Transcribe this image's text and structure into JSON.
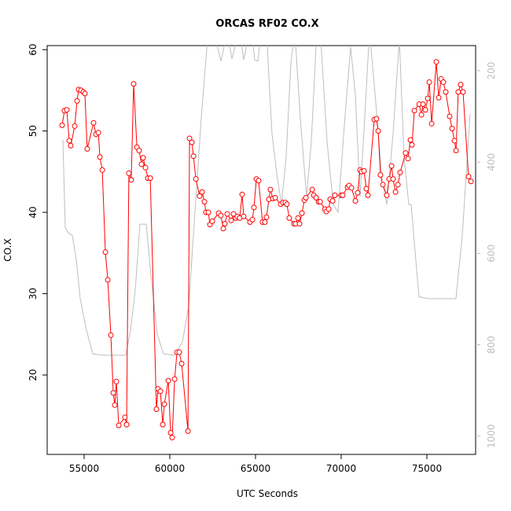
{
  "chart_data": {
    "type": "line",
    "title": "ORCAS RF02 CO.X",
    "x_label": "UTC Seconds",
    "y_label": "CO.X",
    "xlim": [
      52844,
      77844
    ],
    "xticks": [
      55000,
      60000,
      65000,
      70000,
      75000
    ],
    "ylim": [
      10.24,
      60.5
    ],
    "yticks": [
      20,
      30,
      40,
      50,
      60
    ],
    "y2lim": [
      1040,
      145
    ],
    "y2ticks": [
      200,
      400,
      600,
      800,
      1000
    ],
    "series": [
      {
        "color": "#ff0000",
        "marker": "circle",
        "x": [
          53716,
          53850,
          53990,
          54130,
          54220,
          54450,
          54590,
          54680,
          54820,
          54950,
          55045,
          55180,
          55550,
          55690,
          55830,
          55920,
          56060,
          56240,
          56380,
          56560,
          56700,
          56790,
          56880,
          57020,
          57380,
          57480,
          57610,
          57750,
          57890,
          58080,
          58210,
          58350,
          58440,
          58580,
          58720,
          58860,
          59220,
          59310,
          59450,
          59590,
          59680,
          59910,
          60050,
          60140,
          60280,
          60420,
          60550,
          60690,
          61060,
          61150,
          61290,
          61380,
          61520,
          61740,
          61880,
          62020,
          62110,
          62250,
          62340,
          62480,
          62850,
          62980,
          63120,
          63210,
          63350,
          63580,
          63720,
          63850,
          63940,
          64080,
          64220,
          64310,
          64680,
          64820,
          64910,
          65050,
          65180,
          65410,
          65550,
          65640,
          65780,
          65870,
          66010,
          66150,
          66470,
          66600,
          66740,
          66830,
          66970,
          67250,
          67340,
          67480,
          67570,
          67710,
          67850,
          67940,
          68310,
          68400,
          68540,
          68680,
          68770,
          69050,
          69130,
          69270,
          69360,
          69500,
          69630,
          70000,
          70090,
          70370,
          70460,
          70600,
          70830,
          70960,
          71100,
          71190,
          71330,
          71470,
          71560,
          71930,
          72060,
          72160,
          72290,
          72430,
          72660,
          72800,
          72940,
          73030,
          73170,
          73310,
          73440,
          73760,
          73900,
          74040,
          74130,
          74270,
          74550,
          74680,
          74770,
          74910,
          75050,
          75140,
          75280,
          75550,
          75690,
          75830,
          75960,
          76100,
          76330,
          76470,
          76610,
          76700,
          76830,
          76970,
          77110,
          77430,
          77570
        ],
        "values": [
          50.7,
          52.5,
          52.6,
          48.8,
          48.2,
          50.6,
          53.7,
          55.1,
          55.0,
          54.8,
          54.6,
          47.8,
          51.0,
          49.6,
          49.8,
          46.8,
          45.2,
          35.1,
          31.7,
          24.9,
          17.8,
          16.3,
          19.2,
          13.8,
          14.8,
          13.9,
          44.8,
          44.0,
          55.8,
          48.0,
          47.6,
          45.9,
          46.7,
          45.5,
          44.2,
          44.2,
          15.8,
          18.3,
          18.0,
          13.9,
          16.4,
          19.3,
          12.9,
          12.3,
          19.5,
          22.8,
          22.8,
          21.4,
          13.1,
          49.1,
          48.6,
          46.9,
          44.1,
          42.0,
          42.5,
          41.3,
          40.0,
          40.0,
          38.5,
          38.9,
          39.9,
          39.6,
          38.0,
          38.6,
          39.8,
          39.0,
          39.8,
          39.3,
          39.5,
          39.3,
          42.2,
          39.5,
          38.8,
          39.1,
          40.6,
          44.1,
          43.9,
          38.8,
          38.8,
          39.4,
          41.6,
          42.8,
          41.7,
          41.8,
          41.0,
          41.2,
          41.2,
          41.0,
          39.3,
          38.6,
          38.6,
          39.3,
          38.6,
          39.9,
          41.5,
          41.8,
          42.8,
          42.1,
          41.8,
          41.3,
          41.3,
          40.4,
          40.1,
          40.4,
          41.6,
          41.4,
          42.1,
          42.1,
          42.1,
          43.1,
          43.3,
          43.0,
          41.4,
          42.4,
          45.2,
          45.0,
          45.1,
          42.9,
          42.1,
          51.4,
          51.5,
          50.0,
          44.6,
          43.4,
          42.1,
          44.1,
          45.7,
          44.1,
          42.5,
          43.4,
          44.9,
          47.3,
          46.6,
          48.9,
          48.3,
          52.5,
          53.3,
          52.0,
          53.3,
          52.6,
          54.0,
          56.0,
          50.9,
          58.5,
          54.1,
          56.4,
          56.0,
          54.8,
          51.8,
          50.3,
          48.8,
          47.6,
          54.8,
          55.7,
          54.8,
          44.4,
          43.8
        ]
      },
      {
        "color": "#bebebe",
        "axis": "y2",
        "x": [
          53761,
          53899,
          54082,
          54312,
          54541,
          54771,
          55138,
          55505,
          56055,
          57431,
          57706,
          57981,
          58257,
          58624,
          58899,
          59266,
          59633,
          60275,
          60734,
          61101,
          61468,
          61835,
          62201,
          62568,
          62981,
          63165,
          63394,
          63624,
          63853,
          64082,
          64312,
          64541,
          64770,
          64954,
          65137,
          65321,
          65688,
          65963,
          66238,
          66513,
          66788,
          67064,
          67293,
          67614,
          67981,
          68256,
          68532,
          68807,
          69174,
          69541,
          69816,
          70183,
          70550,
          70825,
          71100,
          71375,
          71651,
          72018,
          72385,
          72660,
          73027,
          73394,
          73669,
          73944,
          74082,
          74311,
          74541,
          75091,
          76696,
          77063,
          77522
        ],
        "values": [
          351,
          544,
          555,
          561,
          613,
          699,
          768,
          820,
          823,
          823,
          768,
          682,
          536,
          536,
          647,
          777,
          820,
          823,
          794,
          716,
          510,
          303,
          131,
          114,
          179,
          148,
          122,
          174,
          140,
          114,
          176,
          131,
          114,
          176,
          179,
          114,
          148,
          338,
          424,
          493,
          389,
          183,
          114,
          303,
          476,
          355,
          148,
          131,
          355,
          493,
          510,
          320,
          148,
          252,
          476,
          303,
          114,
          269,
          441,
          493,
          338,
          131,
          389,
          493,
          493,
          596,
          695,
          699,
          699,
          562,
          295
        ]
      }
    ]
  }
}
